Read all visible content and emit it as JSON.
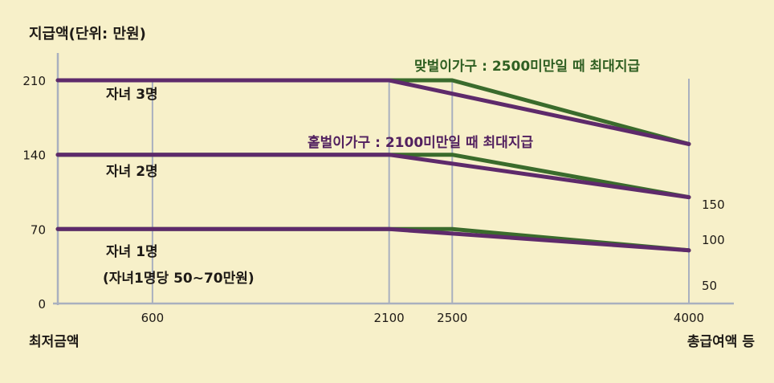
{
  "chart_data": {
    "type": "line",
    "title": "지급액(단위: 만원)",
    "xlabel_left": "최저금액",
    "xlabel_right": "총급여액 등",
    "xlim": [
      0,
      4000
    ],
    "ylim": [
      0,
      210
    ],
    "x_ticks": [
      "600",
      "2100",
      "2500",
      "4000"
    ],
    "y_ticks": [
      "0",
      "70",
      "140",
      "210"
    ],
    "right_values": [
      "150",
      "100",
      "50"
    ],
    "annotations": {
      "dual": "맞벌이가구 : 2500미만일 때 최대지급",
      "single": "홑벌이가구 : 2100미만일 때 최대지급",
      "child3": "자녀 3명",
      "child2": "자녀 2명",
      "child1": "자녀 1명",
      "child1_note": "(자녀1명당 50~70만원)"
    },
    "colors": {
      "dual": "#3a6b2c",
      "single": "#5e2a6b",
      "grid": "#a9b0bf",
      "background": "#f7f0c9"
    },
    "series": [
      {
        "group": "dual",
        "x": [
          0,
          2100,
          2500,
          4000
        ],
        "y": [
          210,
          210,
          210,
          150
        ]
      },
      {
        "group": "single",
        "x": [
          0,
          2100,
          4000
        ],
        "y": [
          210,
          210,
          150
        ]
      },
      {
        "group": "dual",
        "x": [
          0,
          2100,
          2500,
          4000
        ],
        "y": [
          140,
          140,
          140,
          100
        ]
      },
      {
        "group": "single",
        "x": [
          0,
          2100,
          4000
        ],
        "y": [
          140,
          140,
          100
        ]
      },
      {
        "group": "dual",
        "x": [
          0,
          2100,
          2500,
          4000
        ],
        "y": [
          70,
          70,
          70,
          50
        ]
      },
      {
        "group": "single",
        "x": [
          0,
          2100,
          4000
        ],
        "y": [
          70,
          70,
          50
        ]
      }
    ]
  }
}
